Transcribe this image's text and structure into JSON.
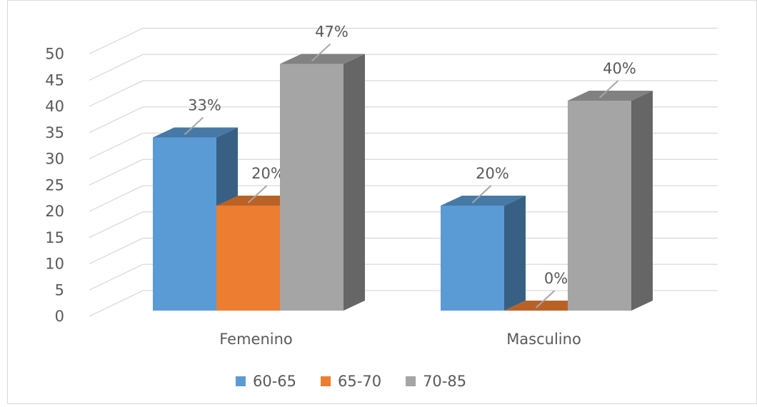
{
  "chart_data": {
    "type": "bar3d",
    "categories": [
      "Femenino",
      "Masculino"
    ],
    "series": [
      {
        "name": "60-65",
        "color": "#5b9bd5",
        "values": [
          33,
          20
        ],
        "value_labels": [
          "33%",
          "20%"
        ]
      },
      {
        "name": "65-70",
        "color": "#ed7d31",
        "values": [
          20,
          0
        ],
        "value_labels": [
          "20%",
          "0%"
        ]
      },
      {
        "name": "70-85",
        "color": "#a5a5a5",
        "values": [
          47,
          40
        ],
        "value_labels": [
          "47%",
          "40%"
        ]
      }
    ],
    "ylim": [
      0,
      50
    ],
    "yticks": [
      0,
      5,
      10,
      15,
      20,
      25,
      30,
      35,
      40,
      45,
      50
    ],
    "grid": true,
    "legend": "bottom"
  }
}
